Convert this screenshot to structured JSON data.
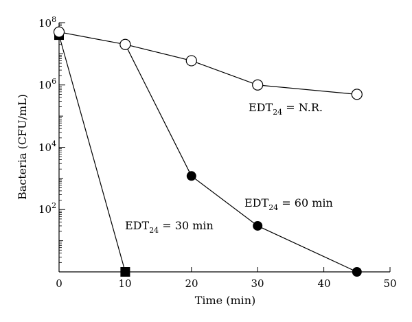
{
  "chart_data": {
    "type": "scatter",
    "xlabel": "Time (min)",
    "ylabel": "Bacteria (CFU/mL)",
    "xlim": [
      0,
      50
    ],
    "ylim_log10": [
      0,
      8
    ],
    "y_scale": "log",
    "grid": false,
    "x_ticks": [
      "0",
      "10",
      "20",
      "30",
      "40",
      "50"
    ],
    "y_ticks": [
      {
        "base": "10",
        "exp": "2"
      },
      {
        "base": "10",
        "exp": "4"
      },
      {
        "base": "10",
        "exp": "6"
      },
      {
        "base": "10",
        "exp": "8"
      }
    ],
    "series": [
      {
        "marker": "open-circle",
        "color": "#000000",
        "x": [
          0,
          10,
          20,
          30,
          45
        ],
        "y": [
          50000000,
          20000000,
          6000000,
          1000000,
          500000
        ]
      },
      {
        "marker": "filled-circle",
        "color": "#000000",
        "x": [
          10,
          20,
          30,
          45
        ],
        "y": [
          20000000,
          1200,
          30,
          1
        ]
      },
      {
        "marker": "filled-square",
        "color": "#000000",
        "x": [
          0,
          10
        ],
        "y": [
          40000000,
          1
        ]
      }
    ],
    "annotations": [
      {
        "main": "EDT",
        "sub": "24",
        "rest": " = N.R."
      },
      {
        "main": "EDT",
        "sub": "24",
        "rest": " = 60 min"
      },
      {
        "main": "EDT",
        "sub": "24",
        "rest": " = 30 min"
      }
    ]
  }
}
